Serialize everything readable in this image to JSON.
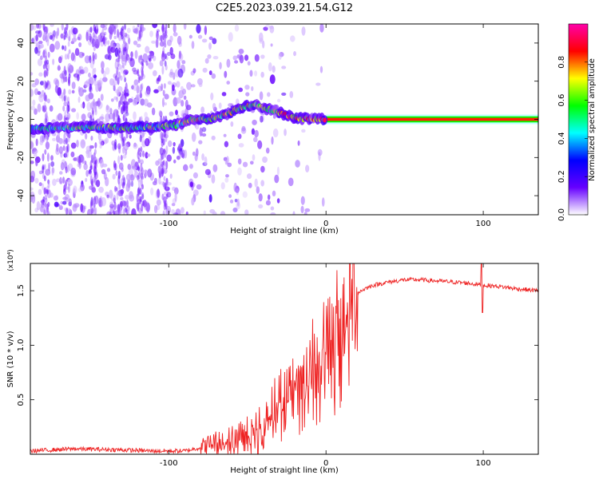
{
  "title": "C2E5.2023.039.21.54.G12",
  "chart_data": [
    {
      "type": "heatmap",
      "xlabel": "Height of straight line (km)",
      "ylabel": "Frequency (Hz)",
      "xlim": [
        -188,
        135
      ],
      "ylim": [
        -50,
        50
      ],
      "x_ticks": [
        -100,
        0,
        100
      ],
      "y_ticks": [
        40,
        20,
        0,
        -20,
        -40
      ],
      "ridge": {
        "description_of_series": "frequency of peak spectral amplitude vs height",
        "x": [
          -188,
          -170,
          -150,
          -130,
          -110,
          -95,
          -85,
          -75,
          -65,
          -55,
          -45,
          -40,
          -35,
          -30,
          -25,
          -20,
          -15,
          -10,
          -5,
          0,
          50,
          100,
          135
        ],
        "y": [
          -5,
          -4.5,
          -4,
          -4.5,
          -4,
          -3,
          0,
          0,
          2,
          6,
          8,
          6,
          5,
          4,
          2,
          1,
          0.5,
          0.3,
          0.2,
          0,
          0,
          0,
          0
        ]
      },
      "colorbar": {
        "label": "Normalized spectral amplitude",
        "range": [
          0.0,
          1.0
        ],
        "ticks": [
          "0.0",
          "0.2",
          "0.4",
          "0.6",
          "0.8"
        ],
        "colors": [
          "#ffffff",
          "#6600ff",
          "#0000ff",
          "#00ffff",
          "#00ff00",
          "#ffff00",
          "#ff0000",
          "#ff00aa"
        ]
      },
      "grid": false
    },
    {
      "type": "line",
      "xlabel": "Height of straight line (km)",
      "ylabel": "SNR (10 * v/v)",
      "y_scale_label": "(x10⁴)",
      "xlim": [
        -188,
        135
      ],
      "ylim": [
        0,
        1.75
      ],
      "x_ticks": [
        -100,
        0,
        100
      ],
      "y_ticks": [
        "1.5",
        "1.0",
        "0.5"
      ],
      "color": "#ee2222",
      "series": [
        {
          "x": [
            -188,
            -160,
            -130,
            -110,
            -90,
            -80,
            -70,
            -60,
            -50,
            -45,
            -40,
            -35,
            -30,
            -25,
            -20,
            -15,
            -10,
            -5,
            0,
            5,
            10,
            15,
            20,
            25,
            30,
            40,
            50,
            60,
            70,
            80,
            90,
            100,
            110,
            120,
            135
          ],
          "y": [
            0.03,
            0.05,
            0.04,
            0.03,
            0.03,
            0.06,
            0.12,
            0.16,
            0.22,
            0.26,
            0.35,
            0.45,
            0.55,
            0.65,
            0.72,
            0.8,
            0.9,
            1.0,
            1.08,
            1.15,
            1.3,
            1.4,
            1.48,
            1.52,
            1.55,
            1.58,
            1.6,
            1.6,
            1.59,
            1.58,
            1.57,
            1.55,
            1.54,
            1.52,
            1.5
          ]
        }
      ]
    }
  ]
}
